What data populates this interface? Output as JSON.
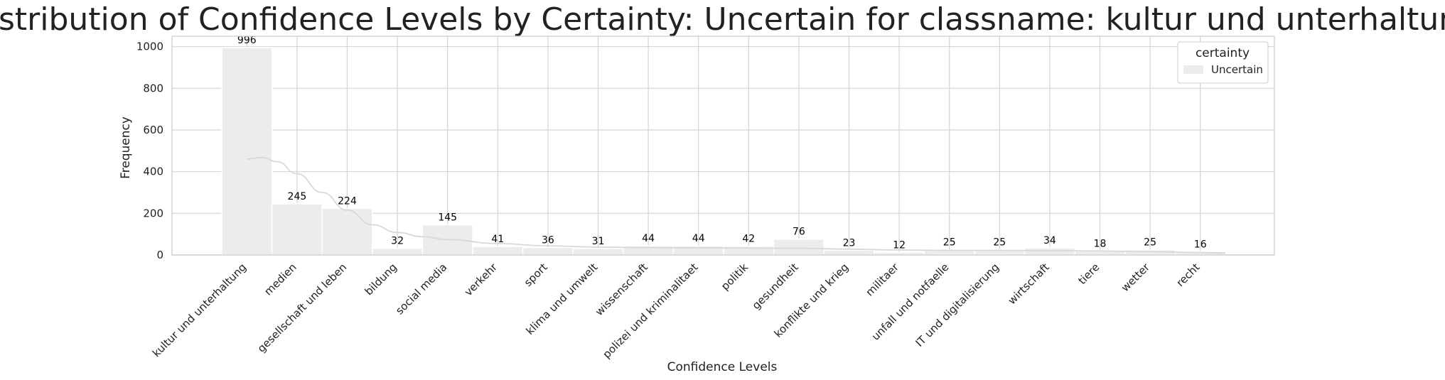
{
  "chart_data": {
    "type": "bar",
    "title": "Distribution of Confidence Levels by Certainty: Uncertain for classname: kultur und unterhaltung",
    "xlabel": "Confidence Levels",
    "ylabel": "Frequency",
    "ylim": [
      0,
      1050
    ],
    "yticks": [
      0,
      200,
      400,
      600,
      800,
      1000
    ],
    "grid": true,
    "legend": {
      "title": "certainty",
      "placement": "top-right",
      "entries": [
        "Uncertain"
      ]
    },
    "categories": [
      "kultur und unterhaltung",
      "medien",
      "gesellschaft und leben",
      "bildung",
      "social media",
      "verkehr",
      "sport",
      "klima und umwelt",
      "wissenschaft",
      "polizei und kriminalitaet",
      "politik",
      "gesundheit",
      "konflikte und krieg",
      "militaer",
      "unfall und notfaelle",
      "IT und digitalisierung",
      "wirtschaft",
      "tiere",
      "wetter",
      "recht"
    ],
    "series": [
      {
        "name": "Uncertain",
        "values": [
          996,
          245,
          224,
          32,
          145,
          41,
          36,
          31,
          44,
          44,
          42,
          76,
          23,
          12,
          25,
          25,
          34,
          18,
          25,
          16
        ]
      }
    ],
    "kde": [
      [
        0.0,
        460
      ],
      [
        0.3,
        468
      ],
      [
        0.6,
        448
      ],
      [
        1.0,
        390
      ],
      [
        1.5,
        300
      ],
      [
        2.0,
        215
      ],
      [
        2.5,
        145
      ],
      [
        3.0,
        108
      ],
      [
        3.5,
        88
      ],
      [
        4.0,
        74
      ],
      [
        5.0,
        55
      ],
      [
        6.0,
        44
      ],
      [
        7.0,
        38
      ],
      [
        8.0,
        35
      ],
      [
        9.0,
        34
      ],
      [
        10.0,
        33
      ],
      [
        11.0,
        32
      ],
      [
        12.0,
        28
      ],
      [
        13.0,
        24
      ],
      [
        14.0,
        22
      ],
      [
        15.0,
        22
      ],
      [
        16.0,
        21
      ],
      [
        17.0,
        19
      ],
      [
        18.0,
        16
      ],
      [
        19.0,
        12
      ],
      [
        19.5,
        10
      ]
    ],
    "colors": {
      "bar": "#ececec",
      "kde": "#d8d8d8",
      "grid": "#d4d4d4",
      "frame": "#cccccc"
    }
  }
}
